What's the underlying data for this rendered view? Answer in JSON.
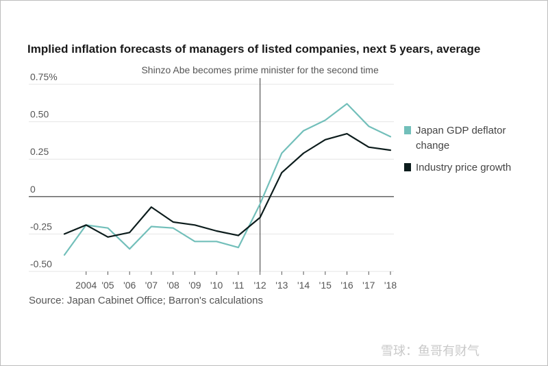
{
  "chart_data": {
    "type": "line",
    "title": "Implied inflation forecasts of managers of listed companies, next 5 years, average",
    "source": "Source: Japan Cabinet Office; Barron's calculations",
    "annotation": {
      "text": "Shinzo Abe becomes prime minister for the second time",
      "x": 2012
    },
    "x": [
      2003,
      2004,
      2005,
      2006,
      2007,
      2008,
      2009,
      2010,
      2011,
      2012,
      2013,
      2014,
      2015,
      2016,
      2017,
      2018
    ],
    "x_tick_values": [
      2004,
      2005,
      2006,
      2007,
      2008,
      2009,
      2010,
      2011,
      2012,
      2013,
      2014,
      2015,
      2016,
      2017,
      2018
    ],
    "x_tick_labels": [
      "2004",
      "'05",
      "'06",
      "'07",
      "'08",
      "'09",
      "'10",
      "'11",
      "'12",
      "'13",
      "'14",
      "'15",
      "'16",
      "'17",
      "'18"
    ],
    "xlim": [
      2003,
      2018
    ],
    "y_ticks": [
      0.75,
      0.5,
      0.25,
      0,
      -0.25,
      -0.5
    ],
    "y_tick_labels": [
      "0.75%",
      "0.50",
      "0.25",
      "0",
      "-0.25",
      "-0.50"
    ],
    "ylim": [
      -0.5,
      0.75
    ],
    "series": [
      {
        "name": "Japan GDP deflator change",
        "name_lines": [
          "Japan GDP deflator",
          "change"
        ],
        "color": "#72bfba",
        "values": [
          -0.39,
          -0.19,
          -0.21,
          -0.35,
          -0.2,
          -0.21,
          -0.3,
          -0.3,
          -0.34,
          -0.05,
          0.29,
          0.44,
          0.51,
          0.62,
          0.47,
          0.4
        ]
      },
      {
        "name": "Industry price growth",
        "name_lines": [
          "Industry price growth"
        ],
        "color": "#0c1c1c",
        "values": [
          -0.25,
          -0.19,
          -0.27,
          -0.24,
          -0.07,
          -0.17,
          -0.19,
          -0.23,
          -0.26,
          -0.14,
          0.16,
          0.29,
          0.38,
          0.42,
          0.33,
          0.31
        ]
      }
    ],
    "legend_position": "right",
    "grid": true
  },
  "watermark": "雪球：鱼哥有财气"
}
